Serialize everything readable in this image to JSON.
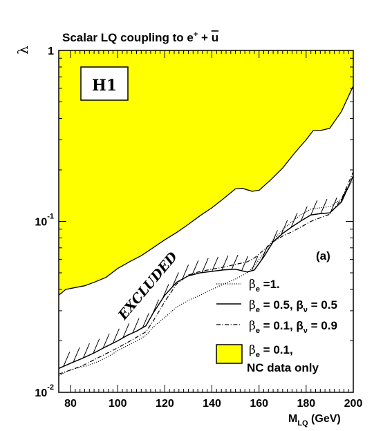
{
  "chart_data": {
    "type": "line",
    "title": {
      "main": "Scalar LQ coupling to e",
      "sup": "+",
      "plus": " + ",
      "quark": "u"
    },
    "experiment_label": "H1",
    "panel_label": "(a)",
    "excluded_label": "EXCLUDED",
    "xlabel": {
      "main": "M",
      "sub": "LQ",
      "unit": " (GeV)"
    },
    "ylabel": "λ",
    "xlim": [
      75,
      200
    ],
    "ylim": [
      0.01,
      1
    ],
    "y_log": true,
    "x_ticks": [
      "80",
      "100",
      "120",
      "140",
      "160",
      "180",
      "200"
    ],
    "y_ticks": [
      {
        "value": 1,
        "base": "1",
        "exp": ""
      },
      {
        "value": 0.1,
        "base": "10",
        "exp": "-1"
      },
      {
        "value": 0.01,
        "base": "10",
        "exp": "-2"
      }
    ],
    "grid": false,
    "legend_position": "bottom-right",
    "legend": [
      {
        "style": "dotted",
        "text": "β",
        "sub": "e",
        "rest": " =1."
      },
      {
        "style": "solid",
        "text": "β",
        "sub": "e",
        "rest": " = 0.5, β",
        "sub2": "ν",
        "rest2": " = 0.5"
      },
      {
        "style": "dashdot",
        "text": "β",
        "sub": "e",
        "rest": " = 0.1, β",
        "sub2": "ν",
        "rest2": " = 0.9"
      },
      {
        "style": "filled",
        "text": "β",
        "sub": "e",
        "rest": " = 0.1,",
        "line2": "NC data only"
      }
    ],
    "colors": {
      "nc_fill": "#ffff00",
      "ink": "#000000"
    },
    "series": [
      {
        "id": "be_1",
        "style": "dotted",
        "x": [
          75,
          78,
          82,
          87,
          92,
          97,
          100,
          104,
          108,
          112,
          115,
          120,
          125,
          130,
          135,
          140,
          145,
          150,
          155,
          158,
          162,
          166,
          170,
          174,
          178,
          182,
          186,
          190,
          195,
          200
        ],
        "y": [
          0.0125,
          0.0132,
          0.0138,
          0.0143,
          0.0152,
          0.0165,
          0.0175,
          0.0187,
          0.02,
          0.0215,
          0.024,
          0.0275,
          0.0315,
          0.0345,
          0.037,
          0.04,
          0.043,
          0.046,
          0.05,
          0.055,
          0.065,
          0.078,
          0.089,
          0.1,
          0.11,
          0.118,
          0.12,
          0.122,
          0.135,
          0.175
        ]
      },
      {
        "id": "be_05_bnu_05",
        "style": "solid",
        "x": [
          75,
          80,
          85,
          90,
          95,
          100,
          104,
          108,
          112,
          115,
          120,
          125,
          130,
          135,
          140,
          145,
          150,
          155,
          158,
          162,
          166,
          170,
          174,
          178,
          182,
          186,
          190,
          195,
          200
        ],
        "y": [
          0.0138,
          0.0148,
          0.0158,
          0.017,
          0.0185,
          0.02,
          0.0215,
          0.0228,
          0.0245,
          0.029,
          0.037,
          0.044,
          0.048,
          0.05,
          0.051,
          0.052,
          0.0525,
          0.0505,
          0.052,
          0.062,
          0.076,
          0.085,
          0.093,
          0.101,
          0.109,
          0.111,
          0.112,
          0.13,
          0.185
        ]
      },
      {
        "id": "be_01_bnu_09",
        "style": "dashdot",
        "x": [
          75,
          80,
          85,
          90,
          95,
          100,
          104,
          108,
          112,
          115,
          120,
          125,
          130,
          135,
          140,
          145,
          150,
          155,
          158,
          162,
          166,
          170,
          174,
          178,
          182,
          186,
          190,
          195,
          200
        ],
        "y": [
          0.0128,
          0.0135,
          0.0143,
          0.0155,
          0.0168,
          0.0182,
          0.0195,
          0.021,
          0.0226,
          0.026,
          0.034,
          0.043,
          0.0485,
          0.051,
          0.0525,
          0.054,
          0.056,
          0.058,
          0.061,
          0.068,
          0.076,
          0.082,
          0.087,
          0.093,
          0.1,
          0.105,
          0.11,
          0.135,
          0.195
        ]
      },
      {
        "id": "nc_only",
        "style": "filled",
        "x": [
          75,
          78,
          82,
          86,
          90,
          95,
          100,
          105,
          110,
          115,
          120,
          125,
          130,
          135,
          140,
          145,
          150,
          153,
          157,
          160,
          165,
          170,
          175,
          180,
          183,
          186,
          190,
          195,
          200
        ],
        "y": [
          0.037,
          0.04,
          0.041,
          0.042,
          0.044,
          0.047,
          0.053,
          0.058,
          0.063,
          0.07,
          0.078,
          0.086,
          0.096,
          0.108,
          0.12,
          0.136,
          0.155,
          0.156,
          0.15,
          0.152,
          0.175,
          0.205,
          0.25,
          0.3,
          0.34,
          0.34,
          0.35,
          0.44,
          0.62
        ]
      }
    ]
  }
}
